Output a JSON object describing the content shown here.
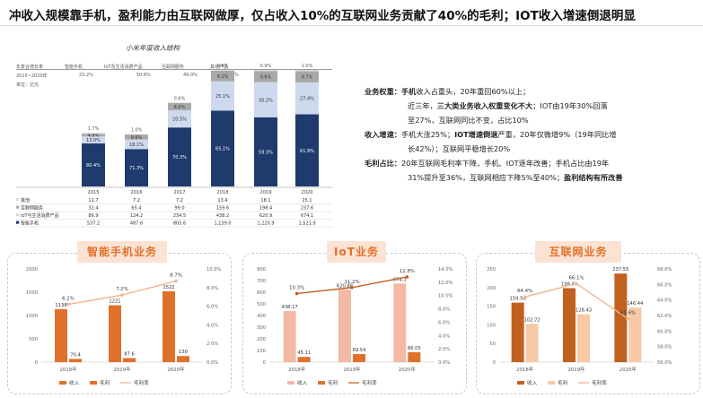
{
  "headline": "冲收入规模靠手机，盈利能力由互联网做厚，仅占收入10%的互联网业务贡献了40%的毛利；IOT收入增速倒退明显",
  "left_table": {
    "title": "小米年度收入结构",
    "header_label": "年复合增长率",
    "header_cols": [
      "智能手机",
      "IoT及生活消费产品",
      "互联网服务",
      "其他产品"
    ],
    "header_vals": [
      "23.2%",
      "",
      "50.6%",
      "49.0%",
      "18.8%"
    ],
    "period": "2015~2020年",
    "unit": "单位：亿元"
  },
  "right_text": {
    "b1_title": "业务权重：",
    "b1_l1_a": "手机",
    "b1_l1_b": "收入占重头，20年重回60%以上；",
    "b1_l2_a": "近三年，",
    "b1_l2_b": "三大类业务收入权重变化不大",
    "b1_l2_c": "；IOT由19年30%回落",
    "b1_l3": "至27%，互联网同比不变，占比10%",
    "b2_title": "收入增速：",
    "b2_l1_a": "手机大涨25%；",
    "b2_l1_b": "IOT增速倒退",
    "b2_l1_c": "严重，20年仅微增9%（19年同比增",
    "b2_l2": "长42%）；互联网平稳增长20%",
    "b3_title": "毛利占比：",
    "b3_l1": "20年互联网毛利率下降，手机、IOT逐年改善；手机占比由19年",
    "b3_l2_a": "31%提升至36%，互联网相应下降5%至40%；",
    "b3_l2_b": "盈利结构有所改善"
  },
  "panels": {
    "phone_title": "智能手机业务",
    "iot_title": "IoT业务",
    "net_title": "互联网业务"
  },
  "colors": {
    "navy": "#1f3b6e",
    "lightblue": "#cdd9ec",
    "gray": "#a9a9a9",
    "lightgray": "#dcdcdc",
    "orange": "#e0712a",
    "peach": "#f2b48c",
    "salmon": "#f3b9a3",
    "brown": "#c2611f",
    "lightorange": "#f8c9a6"
  },
  "chart_data": [
    {
      "type": "bar",
      "stacked": true,
      "title": "小米年度收入结构",
      "categories": [
        "2015",
        "2016",
        "2017",
        "2018",
        "2019",
        "2020"
      ],
      "series": [
        {
          "name": "智能手机",
          "values": [
            537.2,
            487.6,
            805.6,
            1139.0,
            1220.9,
            1521.9
          ],
          "pct": [
            "80.4%",
            "71.3%",
            "70.3%",
            "65.1%",
            "59.3%",
            "61.9%"
          ]
        },
        {
          "name": "IoT与生活消费产品",
          "values": [
            86.9,
            124.2,
            234.5,
            438.2,
            620.9,
            674.1
          ],
          "pct": [
            "13.0%",
            "18.1%",
            "20.5%",
            "25.1%",
            "30.2%",
            "27.4%"
          ]
        },
        {
          "name": "互联网服务",
          "values": [
            32.4,
            65.4,
            99.0,
            159.6,
            198.4,
            237.6
          ],
          "pct": [
            "4.9%",
            "9.6%",
            "8.6%",
            "9.1%",
            "9.6%",
            "9.7%"
          ]
        },
        {
          "name": "其他",
          "values": [
            11.7,
            7.2,
            7.2,
            13.4,
            18.1,
            25.1
          ],
          "pct": [
            "1.7%",
            "1.0%",
            "0.6%",
            "0.8%",
            "0.9%",
            "1.0%"
          ]
        }
      ],
      "table_rows": [
        "其他",
        "互联网服务",
        "IoT与生活消费产品",
        "智能手机"
      ],
      "table_values": {
        "其他": [
          "11.7",
          "7.2",
          "7.2",
          "13.4",
          "18.1",
          "25.1"
        ],
        "互联网服务": [
          "32.4",
          "65.4",
          "99.0",
          "159.6",
          "198.4",
          "237.6"
        ],
        "IoT与生活消费产品": [
          "86.9",
          "124.2",
          "234.5",
          "438.2",
          "620.9",
          "674.1"
        ],
        "智能手机": [
          "537.2",
          "487.6",
          "805.6",
          "1,139.0",
          "1,220.9",
          "1,521.9"
        ]
      }
    },
    {
      "type": "bar",
      "title": "智能手机业务",
      "categories": [
        "2018年",
        "2019年",
        "2020年"
      ],
      "series": [
        {
          "name": "收入",
          "values": [
            1138,
            1221,
            1522
          ]
        },
        {
          "name": "毛利",
          "values": [
            70.4,
            87.6,
            130
          ]
        },
        {
          "name": "毛利率",
          "values": [
            6.2,
            7.2,
            8.7
          ],
          "labels": [
            "6.2%",
            "7.2%",
            "8.7%"
          ],
          "axis": "right"
        }
      ],
      "ylim": [
        0,
        2000
      ],
      "yticks": [
        0,
        500,
        1000,
        1500,
        2000
      ],
      "y2lim": [
        0,
        10
      ],
      "y2ticks": [
        "0.0%",
        "2.0%",
        "4.0%",
        "6.0%",
        "8.0%",
        "10.0%"
      ]
    },
    {
      "type": "bar",
      "title": "IoT业务",
      "categories": [
        "2018年",
        "2019年",
        "2020年"
      ],
      "series": [
        {
          "name": "收入",
          "values": [
            438.17,
            620.88,
            674.1
          ]
        },
        {
          "name": "毛利",
          "values": [
            45.11,
            69.54,
            86.05
          ]
        },
        {
          "name": "毛利率",
          "values": [
            10.3,
            11.2,
            12.8
          ],
          "labels": [
            "10.3%",
            "11.2%",
            "12.8%"
          ],
          "axis": "right"
        }
      ],
      "ylim": [
        0,
        800
      ],
      "yticks": [
        0,
        100,
        200,
        300,
        400,
        500,
        600,
        700,
        800
      ],
      "y2lim": [
        0,
        14
      ],
      "y2ticks": [
        "0.0%",
        "2.0%",
        "4.0%",
        "6.0%",
        "8.0%",
        "10.0%",
        "12.0%",
        "14.0%"
      ]
    },
    {
      "type": "bar",
      "title": "互联网业务",
      "categories": [
        "2018年",
        "2019年",
        "2020年"
      ],
      "series": [
        {
          "name": "收入",
          "values": [
            159.56,
            198.42,
            237.55
          ]
        },
        {
          "name": "毛利",
          "values": [
            102.72,
            128.43,
            146.44
          ]
        },
        {
          "name": "毛利率",
          "values": [
            64.4,
            66.1,
            61.6
          ],
          "labels": [
            "64.4%",
            "66.1%",
            "61.6%"
          ],
          "axis": "right"
        }
      ],
      "ylim": [
        0,
        250
      ],
      "yticks": [
        0,
        50,
        100,
        150,
        200,
        250
      ],
      "y2lim": [
        56,
        68
      ],
      "y2ticks": [
        "56.0%",
        "58.0%",
        "60.0%",
        "62.0%",
        "64.0%",
        "66.0%",
        "68.0%"
      ]
    }
  ]
}
